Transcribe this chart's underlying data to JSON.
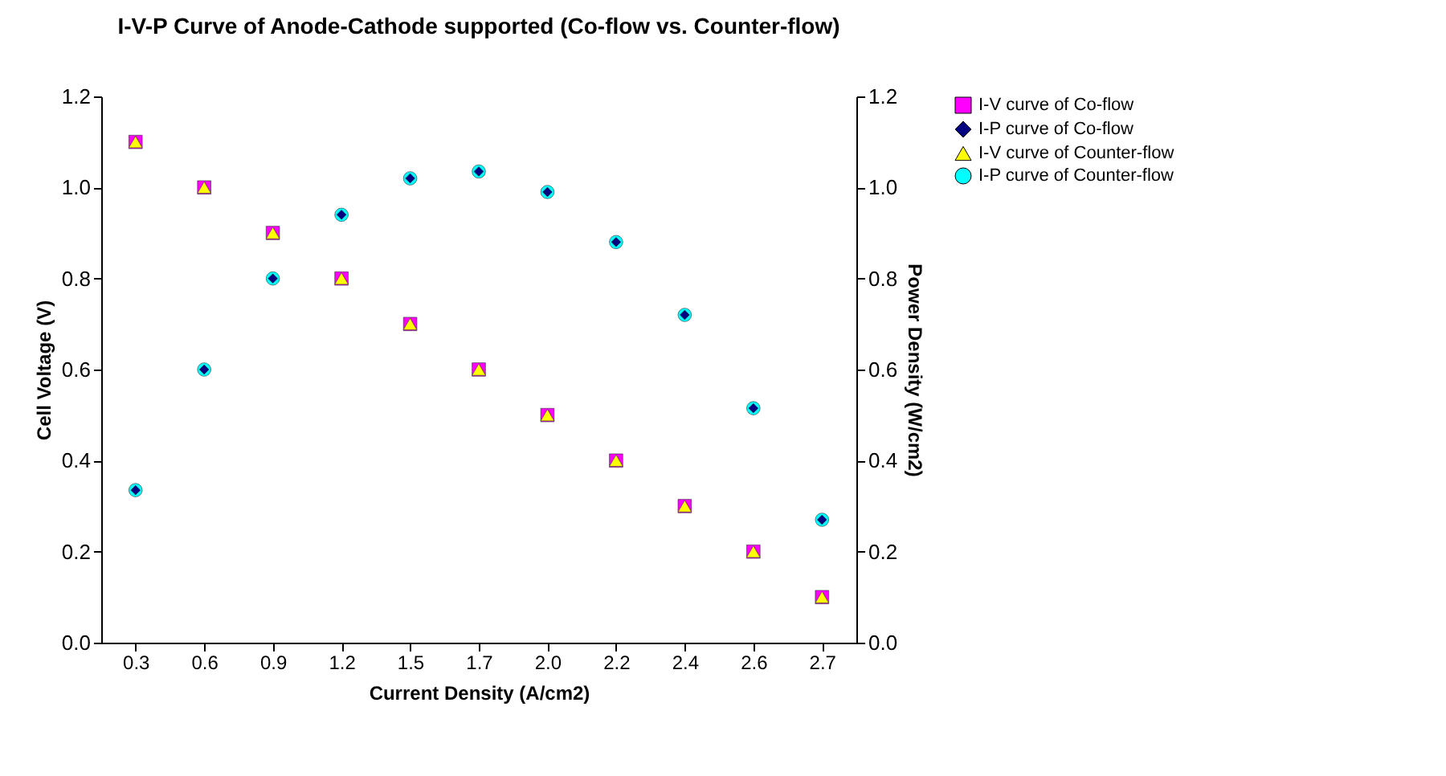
{
  "chart_data": {
    "type": "scatter",
    "title": "I-V-P Curve of Anode-Cathode supported (Co-flow vs. Counter-flow)",
    "xlabel": "Current Density (A/cm2)",
    "ylabel": "Cell Voltage (V)",
    "y2label": "Power Density (W/cm2)",
    "categories": [
      "0.3",
      "0.6",
      "0.9",
      "1.2",
      "1.5",
      "1.7",
      "2.0",
      "2.2",
      "2.4",
      "2.6",
      "2.7"
    ],
    "ylim": [
      0,
      1.2
    ],
    "yticks": [
      {
        "value": 0,
        "label": "0.0"
      },
      0.2,
      0.4,
      0.6,
      0.8,
      {
        "value": 1,
        "label": "1.0"
      },
      1.2
    ],
    "y2lim": [
      0,
      1.2
    ],
    "y2ticks": [
      {
        "value": 0,
        "label": "0.0"
      },
      0.2,
      0.4,
      0.6,
      0.8,
      {
        "value": 1,
        "label": "1.0"
      },
      1.2
    ],
    "grid": false,
    "legend": "right",
    "series": [
      {
        "name": "I-V curve of Co-flow",
        "color": "#ff00ff",
        "marker": "square",
        "values": [
          1.1,
          1.0,
          0.9,
          0.8,
          0.7,
          0.6,
          0.5,
          0.4,
          0.3,
          0.2,
          0.1
        ]
      },
      {
        "name": "I-P curve of Co-flow",
        "color": "#000080",
        "marker": "diamond",
        "axis": "y2",
        "values": [
          0.335,
          0.6,
          0.8,
          0.94,
          1.02,
          1.035,
          0.99,
          0.88,
          0.72,
          0.515,
          0.27
        ]
      },
      {
        "name": "I-V curve of Counter-flow",
        "color": "#ffff00",
        "marker": "triangle",
        "values": [
          1.1,
          1.0,
          0.9,
          0.8,
          0.7,
          0.6,
          0.5,
          0.4,
          0.3,
          0.2,
          0.1
        ]
      },
      {
        "name": "I-P curve of Counter-flow",
        "color": "#00ffff",
        "marker": "circle",
        "axis": "y2",
        "values": [
          0.335,
          0.6,
          0.8,
          0.94,
          1.02,
          1.035,
          0.99,
          0.88,
          0.72,
          0.515,
          0.27
        ]
      }
    ]
  }
}
